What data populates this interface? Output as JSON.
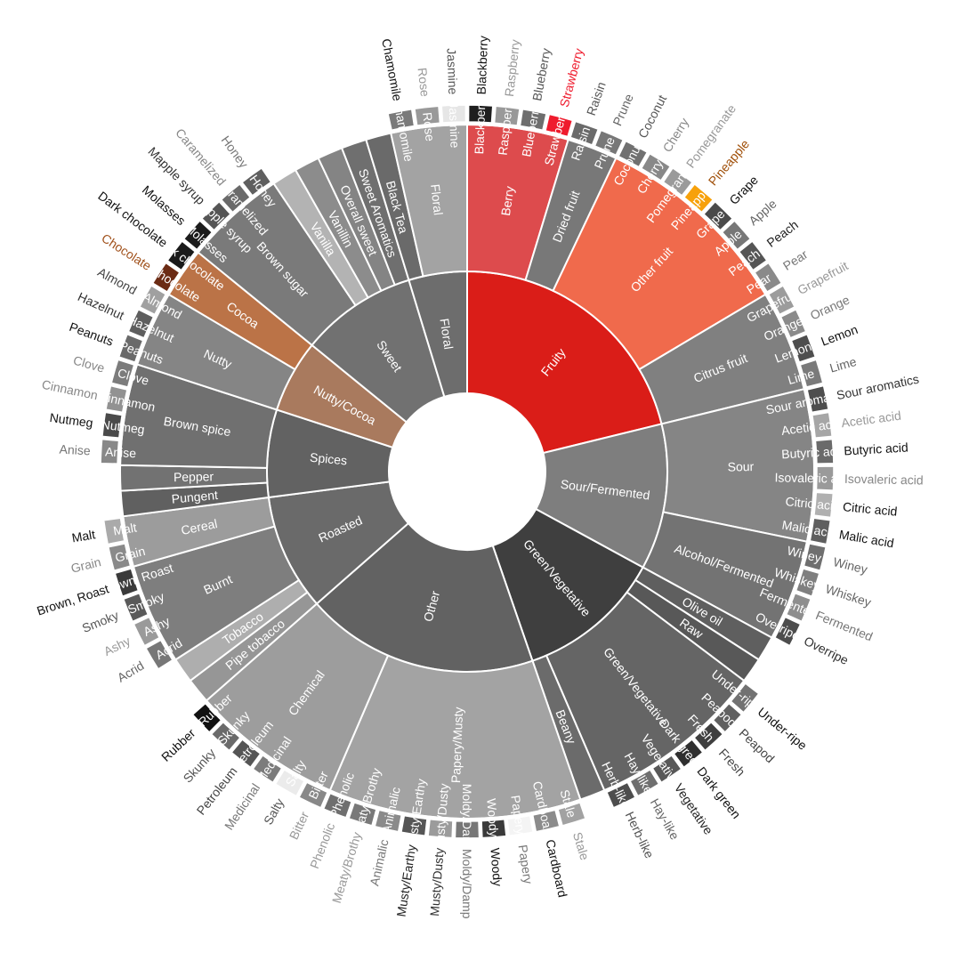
{
  "chart_data": {
    "type": "sunburst",
    "title": "",
    "center": "",
    "children": [
      {
        "name": "Fruity",
        "color": "#da1d18",
        "labelColor": "#ffffff",
        "children": [
          {
            "name": "Berry",
            "color": "#dd4b4d",
            "labelColor": "#ffffff",
            "children": [
              {
                "name": "Blackberry",
                "color": "#1e1e1e",
                "labelColor": "#111111"
              },
              {
                "name": "Raspberry",
                "color": "#999999",
                "labelColor": "#999999"
              },
              {
                "name": "Blueberry",
                "color": "#6e6e6e",
                "labelColor": "#555555"
              },
              {
                "name": "Strawberry",
                "color": "#ef1b2d",
                "labelColor": "#ef1b2d"
              }
            ]
          },
          {
            "name": "Dried fruit",
            "color": "#787878",
            "labelColor": "#ffffff",
            "children": [
              {
                "name": "Raisin",
                "color": "#6a6a6a",
                "labelColor": "#555555"
              },
              {
                "name": "Prune",
                "color": "#777777",
                "labelColor": "#666666"
              }
            ]
          },
          {
            "name": "Other fruit",
            "color": "#f06a4c",
            "labelColor": "#ffffff",
            "children": [
              {
                "name": "Coconut",
                "color": "#707070",
                "labelColor": "#555555"
              },
              {
                "name": "Cherry",
                "color": "#888888",
                "labelColor": "#888888"
              },
              {
                "name": "Pomegranate",
                "color": "#9a9a9a",
                "labelColor": "#999999"
              },
              {
                "name": "Pineapple",
                "color": "#f7a10b",
                "labelColor": "#a0500a"
              },
              {
                "name": "Grape",
                "color": "#4a4a4a",
                "labelColor": "#111111"
              },
              {
                "name": "Apple",
                "color": "#777777",
                "labelColor": "#666666"
              },
              {
                "name": "Peach",
                "color": "#555555",
                "labelColor": "#222222"
              },
              {
                "name": "Pear",
                "color": "#8a8a8a",
                "labelColor": "#777777"
              }
            ]
          },
          {
            "name": "Citrus fruit",
            "color": "#808080",
            "labelColor": "#ffffff",
            "children": [
              {
                "name": "Grapefruit",
                "color": "#9c9c9c",
                "labelColor": "#999999"
              },
              {
                "name": "Orange",
                "color": "#8a8a8a",
                "labelColor": "#777777"
              },
              {
                "name": "Lemon",
                "color": "#4e4e4e",
                "labelColor": "#111111"
              },
              {
                "name": "Lime",
                "color": "#7a7a7a",
                "labelColor": "#666666"
              }
            ]
          }
        ]
      },
      {
        "name": "Sour/Fermented",
        "color": "#7e7e7e",
        "labelColor": "#ffffff",
        "children": [
          {
            "name": "Sour",
            "color": "#858585",
            "labelColor": "#ffffff",
            "children": [
              {
                "name": "Sour aromatics",
                "color": "#4e4e4e",
                "labelColor": "#333333"
              },
              {
                "name": "Acetic acid",
                "color": "#a6a6a6",
                "labelColor": "#999999"
              },
              {
                "name": "Butyric acid",
                "color": "#6a6a6a",
                "labelColor": "#111111"
              },
              {
                "name": "Isovaleric acid",
                "color": "#9a9a9a",
                "labelColor": "#888888"
              },
              {
                "name": "Citric acid",
                "color": "#b0b0b0",
                "labelColor": "#111111"
              },
              {
                "name": "Malic acid",
                "color": "#5f5f5f",
                "labelColor": "#111111"
              }
            ]
          },
          {
            "name": "Alcohol/Fermented",
            "color": "#737373",
            "labelColor": "#ffffff",
            "children": [
              {
                "name": "Winey",
                "color": "#6f6f6f",
                "labelColor": "#666666"
              },
              {
                "name": "Whiskey",
                "color": "#7f7f7f",
                "labelColor": "#666666"
              },
              {
                "name": "Fermented",
                "color": "#8e8e8e",
                "labelColor": "#777777"
              },
              {
                "name": "Overripe",
                "color": "#4d4d4d",
                "labelColor": "#333333"
              }
            ]
          }
        ]
      },
      {
        "name": "Green/Vegetative",
        "color": "#3f3f3f",
        "labelColor": "#ffffff",
        "children": [
          {
            "name": "Olive oil",
            "color": "#5f5f5f",
            "labelColor": "#ffffff"
          },
          {
            "name": "Raw",
            "color": "#585858",
            "labelColor": "#ffffff"
          },
          {
            "name": "Green/Vegetative",
            "color": "#656565",
            "labelColor": "#ffffff",
            "children": [
              {
                "name": "Under-ripe",
                "color": "#727272",
                "labelColor": "#111111"
              },
              {
                "name": "Peapod",
                "color": "#606060",
                "labelColor": "#444444"
              },
              {
                "name": "Fresh",
                "color": "#3f3f3f",
                "labelColor": "#444444"
              },
              {
                "name": "Dark green",
                "color": "#2f2f2f",
                "labelColor": "#111111"
              },
              {
                "name": "Vegetative",
                "color": "#585858",
                "labelColor": "#222222"
              },
              {
                "name": "Hay-like",
                "color": "#6f6f6f",
                "labelColor": "#666666"
              },
              {
                "name": "Herb-like",
                "color": "#4d4d4d",
                "labelColor": "#555555"
              }
            ]
          },
          {
            "name": "Beany",
            "color": "#6b6b6b",
            "labelColor": "#ffffff"
          }
        ]
      },
      {
        "name": "Other",
        "color": "#626262",
        "labelColor": "#ffffff",
        "children": [
          {
            "name": "Papery/Musty",
            "color": "#a3a3a3",
            "labelColor": "#ffffff",
            "children": [
              {
                "name": "Stale",
                "color": "#a2a2a2",
                "labelColor": "#999999"
              },
              {
                "name": "Cardboard",
                "color": "#8b8b8b",
                "labelColor": "#111111"
              },
              {
                "name": "Papery",
                "color": "#f4f4f4",
                "labelColor": "#777777"
              },
              {
                "name": "Woody",
                "color": "#3a3a3a",
                "labelColor": "#111111"
              },
              {
                "name": "Moldy/Damp",
                "color": "#777777",
                "labelColor": "#777777"
              },
              {
                "name": "Musty/Dusty",
                "color": "#9b9b9b",
                "labelColor": "#333333"
              },
              {
                "name": "Musty/Earthy",
                "color": "#555555",
                "labelColor": "#222222"
              },
              {
                "name": "Animalic",
                "color": "#8a8a8a",
                "labelColor": "#777777"
              },
              {
                "name": "Meaty/Brothy",
                "color": "#797979",
                "labelColor": "#999999"
              },
              {
                "name": "Phenolic",
                "color": "#6f6f6f",
                "labelColor": "#999999"
              }
            ]
          },
          {
            "name": "Chemical",
            "color": "#9d9d9d",
            "labelColor": "#ffffff",
            "children": [
              {
                "name": "Bitter",
                "color": "#888888",
                "labelColor": "#999999"
              },
              {
                "name": "Salty",
                "color": "#ebebeb",
                "labelColor": "#555555"
              },
              {
                "name": "Medicinal",
                "color": "#7c7c7c",
                "labelColor": "#777777"
              },
              {
                "name": "Petroleum",
                "color": "#555555",
                "labelColor": "#444444"
              },
              {
                "name": "Skunky",
                "color": "#6a6a6a",
                "labelColor": "#555555"
              },
              {
                "name": "Rubber",
                "color": "#111111",
                "labelColor": "#111111"
              }
            ]
          }
        ]
      },
      {
        "name": "Roasted",
        "color": "#6a6a6a",
        "labelColor": "#ffffff",
        "children": [
          {
            "name": "Pipe tobacco",
            "color": "#969696",
            "labelColor": "#ffffff"
          },
          {
            "name": "Tobacco",
            "color": "#aeaeae",
            "labelColor": "#ffffff"
          },
          {
            "name": "Burnt",
            "color": "#7e7e7e",
            "labelColor": "#ffffff",
            "children": [
              {
                "name": "Acrid",
                "color": "#777777",
                "labelColor": "#666666"
              },
              {
                "name": "Ashy",
                "color": "#9a9a9a",
                "labelColor": "#999999"
              },
              {
                "name": "Smoky",
                "color": "#5a5a5a",
                "labelColor": "#555555"
              },
              {
                "name": "Brown, Roast",
                "color": "#3a3a3a",
                "labelColor": "#111111"
              }
            ]
          },
          {
            "name": "Cereal",
            "color": "#9c9c9c",
            "labelColor": "#ffffff",
            "children": [
              {
                "name": "Grain",
                "color": "#8a8a8a",
                "labelColor": "#888888"
              },
              {
                "name": "Malt",
                "color": "#aaaaaa",
                "labelColor": "#111111"
              }
            ]
          }
        ]
      },
      {
        "name": "Spices",
        "color": "#626262",
        "labelColor": "#ffffff",
        "children": [
          {
            "name": "Pungent",
            "color": "#606060",
            "labelColor": "#ffffff"
          },
          {
            "name": "Pepper",
            "color": "#727272",
            "labelColor": "#ffffff"
          },
          {
            "name": "Brown spice",
            "color": "#707070",
            "labelColor": "#ffffff",
            "children": [
              {
                "name": "Anise",
                "color": "#888888",
                "labelColor": "#777777"
              },
              {
                "name": "Nutmeg",
                "color": "#4a4a4a",
                "labelColor": "#111111"
              },
              {
                "name": "Cinnamon",
                "color": "#929292",
                "labelColor": "#888888"
              },
              {
                "name": "Clove",
                "color": "#7c7c7c",
                "labelColor": "#888888"
              }
            ]
          }
        ]
      },
      {
        "name": "Nutty/Cocoa",
        "color": "#a97a5e",
        "labelColor": "#ffffff",
        "children": [
          {
            "name": "Nutty",
            "color": "#858585",
            "labelColor": "#ffffff",
            "children": [
              {
                "name": "Peanuts",
                "color": "#6a6a6a",
                "labelColor": "#111111"
              },
              {
                "name": "Hazelnut",
                "color": "#5e5e5e",
                "labelColor": "#333333"
              },
              {
                "name": "Almond",
                "color": "#a0a0a0",
                "labelColor": "#444444"
              }
            ]
          },
          {
            "name": "Cocoa",
            "color": "#bb7347",
            "labelColor": "#ffffff",
            "children": [
              {
                "name": "Chocolate",
                "color": "#6b2b14",
                "labelColor": "#a0501a"
              },
              {
                "name": "Dark chocolate",
                "color": "#1a1a1a",
                "labelColor": "#111111"
              }
            ]
          }
        ]
      },
      {
        "name": "Sweet",
        "color": "#717171",
        "labelColor": "#ffffff",
        "children": [
          {
            "name": "Brown sugar",
            "color": "#7a7a7a",
            "labelColor": "#ffffff",
            "children": [
              {
                "name": "Molasses",
                "color": "#1c1c1c",
                "labelColor": "#111111"
              },
              {
                "name": "Mapple syrup",
                "color": "#555555",
                "labelColor": "#333333"
              },
              {
                "name": "Caramelized",
                "color": "#6a6a6a",
                "labelColor": "#888888"
              },
              {
                "name": "Honey",
                "color": "#5f5f5f",
                "labelColor": "#777777"
              }
            ]
          },
          {
            "name": "Vanilla",
            "color": "#b3b3b3",
            "labelColor": "#ffffff"
          },
          {
            "name": "Vanillin",
            "color": "#8c8c8c",
            "labelColor": "#ffffff"
          },
          {
            "name": "Overall sweet",
            "color": "#848484",
            "labelColor": "#ffffff"
          },
          {
            "name": "Sweet Aromatics",
            "color": "#6f6f6f",
            "labelColor": "#ffffff"
          }
        ]
      },
      {
        "name": "Floral",
        "color": "#6d6d6d",
        "labelColor": "#ffffff",
        "children": [
          {
            "name": "Black Tea",
            "color": "#6a6a6a",
            "labelColor": "#ffffff"
          },
          {
            "name": "Floral",
            "color": "#a3a3a3",
            "labelColor": "#ffffff",
            "children": [
              {
                "name": "Chamomile",
                "color": "#7a7a7a",
                "labelColor": "#111111"
              },
              {
                "name": "Rose",
                "color": "#999999",
                "labelColor": "#999999"
              },
              {
                "name": "Jasmine",
                "color": "#e6e6e6",
                "labelColor": "#555555"
              }
            ]
          }
        ]
      }
    ]
  }
}
